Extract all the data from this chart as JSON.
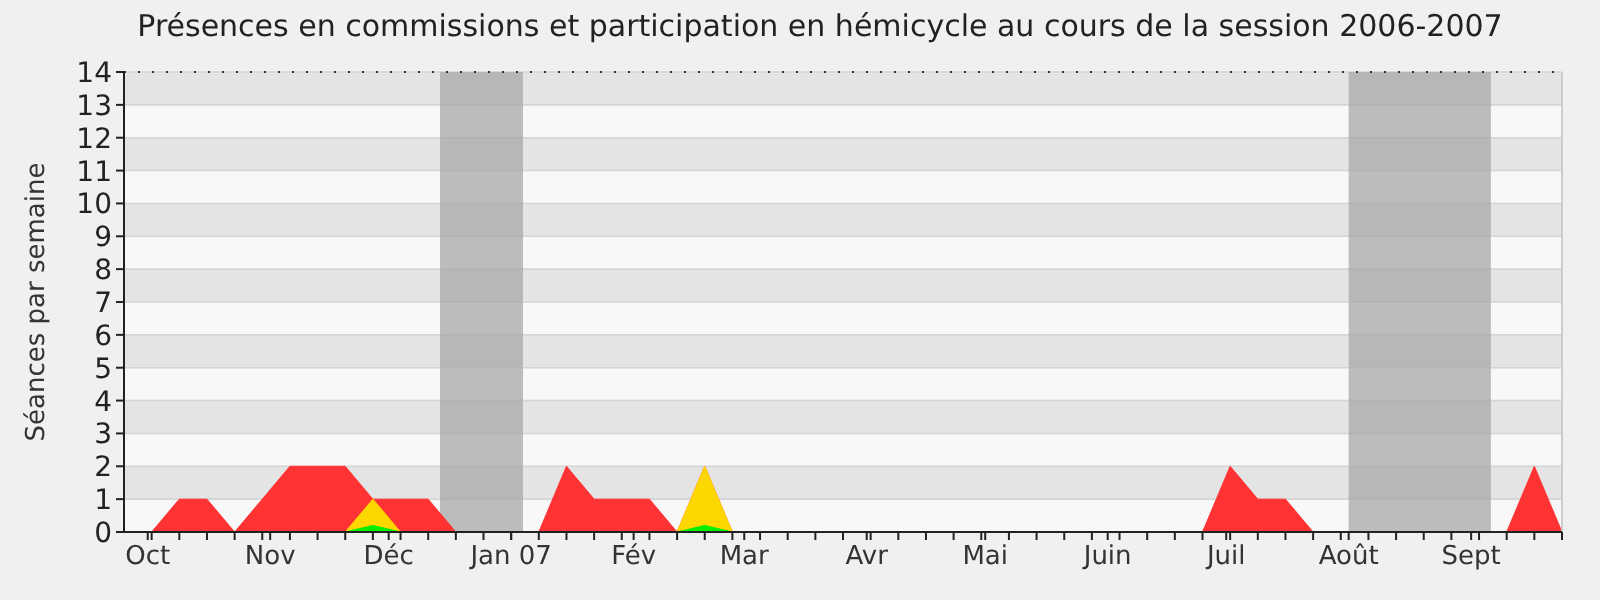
{
  "chart_data": {
    "type": "area",
    "title": "Présences en commissions et participation en hémicycle au cours de la session 2006-2007",
    "ylabel": "Séances par semaine",
    "x": [
      "2006-10-02",
      "2006-10-09",
      "2006-10-16",
      "2006-10-23",
      "2006-10-30",
      "2006-11-06",
      "2006-11-13",
      "2006-11-20",
      "2006-11-27",
      "2006-12-04",
      "2006-12-11",
      "2006-12-18",
      "2006-12-25",
      "2007-01-01",
      "2007-01-08",
      "2007-01-15",
      "2007-01-22",
      "2007-01-29",
      "2007-02-05",
      "2007-02-12",
      "2007-02-19",
      "2007-02-26",
      "2007-03-05",
      "2007-03-12",
      "2007-03-19",
      "2007-03-26",
      "2007-04-02",
      "2007-04-09",
      "2007-04-16",
      "2007-04-23",
      "2007-04-30",
      "2007-05-07",
      "2007-05-14",
      "2007-05-21",
      "2007-05-28",
      "2007-06-04",
      "2007-06-11",
      "2007-06-18",
      "2007-06-25",
      "2007-07-02",
      "2007-07-09",
      "2007-07-16",
      "2007-07-23",
      "2007-07-30",
      "2007-08-06",
      "2007-08-13",
      "2007-08-20",
      "2007-08-27",
      "2007-09-03",
      "2007-09-10",
      "2007-09-17",
      "2007-09-24"
    ],
    "series": [
      {
        "color": "#ff3333",
        "values": [
          0,
          1,
          1,
          0,
          1,
          2,
          2,
          2,
          1,
          1,
          1,
          0,
          null,
          null,
          0,
          2,
          1,
          1,
          1,
          0,
          2,
          0,
          null,
          null,
          null,
          null,
          null,
          null,
          null,
          null,
          null,
          null,
          null,
          null,
          null,
          null,
          null,
          null,
          0,
          2,
          1,
          1,
          0,
          null,
          null,
          null,
          null,
          null,
          null,
          0,
          2,
          0
        ]
      },
      {
        "color": "#ffd700",
        "values": [
          null,
          null,
          null,
          null,
          null,
          null,
          null,
          0,
          1,
          0,
          null,
          null,
          null,
          null,
          null,
          null,
          null,
          null,
          null,
          0,
          2,
          0,
          null,
          null,
          null,
          null,
          null,
          null,
          null,
          null,
          null,
          null,
          null,
          null,
          null,
          null,
          null,
          null,
          null,
          null,
          null,
          null,
          null,
          null,
          null,
          null,
          null,
          null,
          null,
          null,
          null,
          null
        ]
      },
      {
        "color": "#00ee00",
        "values": [
          null,
          null,
          null,
          null,
          null,
          null,
          null,
          0,
          0.2,
          0,
          null,
          null,
          null,
          null,
          null,
          null,
          null,
          null,
          null,
          0,
          0.2,
          0,
          null,
          null,
          null,
          null,
          null,
          null,
          null,
          null,
          null,
          null,
          null,
          null,
          null,
          null,
          null,
          null,
          null,
          null,
          null,
          null,
          null,
          null,
          null,
          null,
          null,
          null,
          null,
          null,
          null,
          null
        ]
      }
    ],
    "xlim": [
      "2006-09-25",
      "2007-09-24"
    ],
    "xticks": [
      {
        "value": "2006-10-01",
        "label": "Oct"
      },
      {
        "value": "2006-11-01",
        "label": "Nov"
      },
      {
        "value": "2006-12-01",
        "label": "Déc"
      },
      {
        "value": "2007-01-01",
        "label": "Jan 07"
      },
      {
        "value": "2007-02-01",
        "label": "Fév"
      },
      {
        "value": "2007-03-01",
        "label": "Mar"
      },
      {
        "value": "2007-04-01",
        "label": "Avr"
      },
      {
        "value": "2007-05-01",
        "label": "Mai"
      },
      {
        "value": "2007-06-01",
        "label": "Juin"
      },
      {
        "value": "2007-07-01",
        "label": "Juil"
      },
      {
        "value": "2007-08-01",
        "label": "Août"
      },
      {
        "value": "2007-09-01",
        "label": "Sept"
      }
    ],
    "ylim": [
      0,
      14
    ],
    "yticks": [
      0,
      1,
      2,
      3,
      4,
      5,
      6,
      7,
      8,
      9,
      10,
      11,
      12,
      13,
      14
    ],
    "grid": "y",
    "bands": [
      {
        "axis": "x",
        "from": "2006-12-14",
        "to": "2007-01-04",
        "color": "#a8a8a8"
      },
      {
        "axis": "x",
        "from": "2007-08-01",
        "to": "2007-09-06",
        "color": "#a8a8a8"
      }
    ]
  }
}
